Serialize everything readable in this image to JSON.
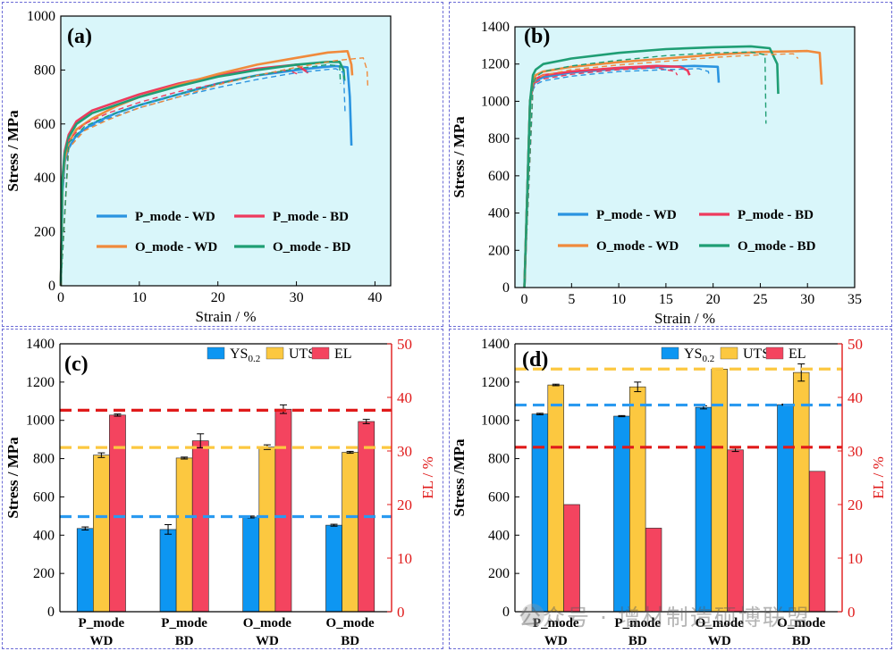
{
  "chart_data": [
    {
      "panel": "(a)",
      "type": "line",
      "xlabel": "Strain / %",
      "ylabel": "Stress / MPa",
      "xlim": [
        0,
        42
      ],
      "ylim": [
        0,
        1000
      ],
      "xticks": [
        0,
        10,
        20,
        30,
        40
      ],
      "yticks": [
        0,
        200,
        400,
        600,
        800,
        1000
      ],
      "background": "#d9f6fa",
      "series": [
        {
          "name": "P_mode - WD",
          "color": "#2a94e0",
          "style": "solid",
          "x": [
            0,
            0.2,
            0.5,
            1,
            2,
            4,
            7,
            10,
            15,
            20,
            25,
            30,
            33,
            35,
            36.5,
            36.8,
            37
          ],
          "y": [
            0,
            350,
            460,
            510,
            560,
            600,
            640,
            670,
            710,
            750,
            780,
            800,
            810,
            815,
            810,
            700,
            520
          ]
        },
        {
          "name": "P_mode - BD",
          "color": "#ee3a5d",
          "style": "solid",
          "x": [
            0,
            0.2,
            0.5,
            1,
            2,
            4,
            7,
            10,
            15,
            20,
            25,
            30,
            31.5
          ],
          "y": [
            0,
            400,
            500,
            560,
            610,
            650,
            680,
            710,
            750,
            780,
            805,
            820,
            790
          ]
        },
        {
          "name": "O_mode - WD",
          "color": "#f08a3c",
          "style": "solid",
          "x": [
            0,
            0.2,
            0.5,
            1,
            2,
            4,
            7,
            10,
            15,
            20,
            25,
            30,
            34,
            36.5,
            37,
            37.1
          ],
          "y": [
            0,
            380,
            470,
            530,
            580,
            620,
            665,
            700,
            745,
            785,
            820,
            845,
            865,
            870,
            820,
            780
          ]
        },
        {
          "name": "O_mode - BD",
          "color": "#1f9e74",
          "style": "solid",
          "x": [
            0,
            0.2,
            0.5,
            1,
            2,
            4,
            7,
            10,
            15,
            20,
            25,
            30,
            34,
            35.5,
            36,
            36.1
          ],
          "y": [
            0,
            390,
            490,
            550,
            600,
            640,
            670,
            700,
            740,
            775,
            800,
            820,
            830,
            830,
            800,
            760
          ]
        },
        {
          "name": "",
          "color": "#2a94e0",
          "style": "dashed",
          "x": [
            0,
            1,
            3,
            6,
            10,
            15,
            20,
            25,
            30,
            35,
            36,
            36.2
          ],
          "y": [
            0,
            520,
            580,
            620,
            660,
            700,
            735,
            765,
            790,
            805,
            790,
            640
          ]
        },
        {
          "name": "",
          "color": "#ee3a5d",
          "style": "dashed",
          "x": [
            0,
            1,
            3,
            6,
            10,
            15,
            20,
            25,
            29,
            30.5
          ],
          "y": [
            0,
            540,
            600,
            640,
            680,
            720,
            750,
            780,
            800,
            780
          ]
        },
        {
          "name": "",
          "color": "#f08a3c",
          "style": "dashed",
          "x": [
            0,
            1,
            3,
            6,
            10,
            15,
            20,
            25,
            30,
            35,
            38.5,
            39,
            39.1
          ],
          "y": [
            0,
            510,
            575,
            615,
            660,
            700,
            745,
            780,
            810,
            835,
            845,
            800,
            730
          ]
        },
        {
          "name": "",
          "color": "#1f9e74",
          "style": "dashed",
          "x": [
            0,
            1,
            3,
            6,
            10,
            15,
            20,
            25,
            30,
            34,
            35.5,
            35.6
          ],
          "y": [
            0,
            530,
            590,
            630,
            670,
            710,
            750,
            780,
            805,
            820,
            815,
            750
          ]
        }
      ]
    },
    {
      "panel": "(b)",
      "type": "line",
      "xlabel": "Strain / %",
      "ylabel": "Stress / MPa",
      "xlim": [
        -1,
        35
      ],
      "ylim": [
        0,
        1400
      ],
      "xticks": [
        0,
        5,
        10,
        15,
        20,
        25,
        30,
        35
      ],
      "yticks": [
        0,
        200,
        400,
        600,
        800,
        1000,
        1200,
        1400
      ],
      "background": "#d9f6fa",
      "series": [
        {
          "name": "P_mode - WD",
          "color": "#2a94e0",
          "style": "solid",
          "x": [
            0,
            0.6,
            0.9,
            1.2,
            2,
            5,
            10,
            15,
            18,
            20.5,
            20.6
          ],
          "y": [
            0,
            1000,
            1080,
            1110,
            1130,
            1155,
            1175,
            1185,
            1190,
            1185,
            1100
          ]
        },
        {
          "name": "P_mode - BD",
          "color": "#ee3a5d",
          "style": "solid",
          "x": [
            0,
            0.6,
            0.9,
            1.2,
            2,
            5,
            10,
            14,
            16.5,
            17.3,
            17.5
          ],
          "y": [
            0,
            1000,
            1090,
            1120,
            1140,
            1160,
            1180,
            1190,
            1185,
            1165,
            1140
          ]
        },
        {
          "name": "O_mode - WD",
          "color": "#f08a3c",
          "style": "solid",
          "x": [
            0,
            0.6,
            0.9,
            1.2,
            2,
            5,
            10,
            15,
            20,
            25,
            30,
            31.3,
            31.5
          ],
          "y": [
            0,
            1000,
            1110,
            1140,
            1160,
            1185,
            1210,
            1230,
            1250,
            1265,
            1270,
            1260,
            1090
          ]
        },
        {
          "name": "O_mode - BD",
          "color": "#1f9e74",
          "style": "solid",
          "x": [
            0,
            0.6,
            0.9,
            1.2,
            2,
            5,
            10,
            15,
            20,
            24,
            26,
            26.8,
            26.9
          ],
          "y": [
            0,
            1000,
            1140,
            1170,
            1200,
            1230,
            1260,
            1280,
            1290,
            1295,
            1285,
            1200,
            1040
          ]
        },
        {
          "name": "",
          "color": "#2a94e0",
          "style": "dashed",
          "x": [
            0,
            0.9,
            1.2,
            2,
            5,
            10,
            15,
            18.5,
            19.5,
            19.6
          ],
          "y": [
            0,
            1060,
            1090,
            1110,
            1135,
            1160,
            1170,
            1175,
            1160,
            1130
          ]
        },
        {
          "name": "",
          "color": "#ee3a5d",
          "style": "dashed",
          "x": [
            0,
            0.9,
            1.2,
            2,
            5,
            10,
            14,
            16,
            16.2
          ],
          "y": [
            0,
            1070,
            1100,
            1120,
            1145,
            1170,
            1180,
            1160,
            1140
          ]
        },
        {
          "name": "",
          "color": "#f08a3c",
          "style": "dashed",
          "x": [
            0,
            0.9,
            1.2,
            2,
            5,
            10,
            15,
            20,
            25,
            28.5,
            29
          ],
          "y": [
            0,
            1080,
            1120,
            1140,
            1170,
            1195,
            1215,
            1235,
            1250,
            1255,
            1230
          ]
        },
        {
          "name": "",
          "color": "#1f9e74",
          "style": "dashed",
          "x": [
            0,
            0.9,
            1.2,
            2,
            5,
            10,
            15,
            20,
            24,
            25.5,
            25.6
          ],
          "y": [
            0,
            1090,
            1130,
            1160,
            1190,
            1220,
            1245,
            1260,
            1265,
            1250,
            880
          ]
        }
      ]
    },
    {
      "panel": "(c)",
      "type": "bar",
      "categories": [
        [
          "P_mode",
          "WD"
        ],
        [
          "P_mode",
          "BD"
        ],
        [
          "O_mode",
          "WD"
        ],
        [
          "O_mode",
          "BD"
        ]
      ],
      "ylabel": "Stress / MPa",
      "ylim": [
        0,
        1400
      ],
      "yticks": [
        0,
        200,
        400,
        600,
        800,
        1000,
        1200,
        1400
      ],
      "y2label": "EL / %",
      "y2lim": [
        0,
        50
      ],
      "y2ticks": [
        0,
        10,
        20,
        30,
        40,
        50
      ],
      "legend_placement": "top-right",
      "series": [
        {
          "name": "YS0.2",
          "axis": "left",
          "color": "#0d96f2",
          "values": [
            435,
            430,
            495,
            452
          ],
          "errors": [
            8,
            25,
            5,
            5
          ]
        },
        {
          "name": "UTS",
          "axis": "left",
          "color": "#fcc840",
          "values": [
            818,
            803,
            860,
            833
          ],
          "errors": [
            12,
            5,
            12,
            5
          ]
        },
        {
          "name": "EL",
          "axis": "right",
          "color": "#f4445f",
          "values": [
            36.7,
            31.9,
            37.8,
            35.5
          ],
          "errors": [
            0.2,
            1.3,
            0.8,
            0.4
          ]
        }
      ],
      "reference_lines": [
        {
          "axis": "left",
          "value": 497,
          "color": "#2a9af0"
        },
        {
          "axis": "left",
          "value": 858,
          "color": "#fcc840"
        },
        {
          "axis": "right",
          "value": 37.6,
          "color": "#e01a1a"
        }
      ]
    },
    {
      "panel": "(d)",
      "type": "bar",
      "categories": [
        [
          "P_mode",
          "WD"
        ],
        [
          "P_mode",
          "BD"
        ],
        [
          "O_mode",
          "WD"
        ],
        [
          "O_mode",
          "BD"
        ]
      ],
      "ylabel": "Stress /MPa",
      "ylim": [
        0,
        1400
      ],
      "yticks": [
        0,
        200,
        400,
        600,
        800,
        1000,
        1200,
        1400
      ],
      "y2label": "EL / %",
      "y2lim": [
        0,
        50
      ],
      "y2ticks": [
        0,
        10,
        20,
        30,
        40,
        50
      ],
      "legend_placement": "top-right",
      "series": [
        {
          "name": "YS0.2",
          "axis": "left",
          "color": "#0d96f2",
          "values": [
            1033,
            1022,
            1068,
            1082
          ],
          "errors": [
            4,
            3,
            8,
            3
          ]
        },
        {
          "name": "UTS",
          "axis": "left",
          "color": "#fcc840",
          "values": [
            1185,
            1175,
            1268,
            1250
          ],
          "errors": [
            4,
            25,
            4,
            45
          ]
        },
        {
          "name": "EL",
          "axis": "right",
          "color": "#f4445f",
          "values": [
            20.0,
            15.6,
            30.2,
            26.2
          ],
          "errors": [
            0,
            0,
            0.3,
            0
          ]
        }
      ],
      "reference_lines": [
        {
          "axis": "left",
          "value": 1268,
          "color": "#fcc840"
        },
        {
          "axis": "left",
          "value": 1080,
          "color": "#2a9af0"
        },
        {
          "axis": "right",
          "value": 30.7,
          "color": "#e01a1a"
        }
      ]
    }
  ],
  "watermark": "公众号 · 增材制造硕博联盟"
}
